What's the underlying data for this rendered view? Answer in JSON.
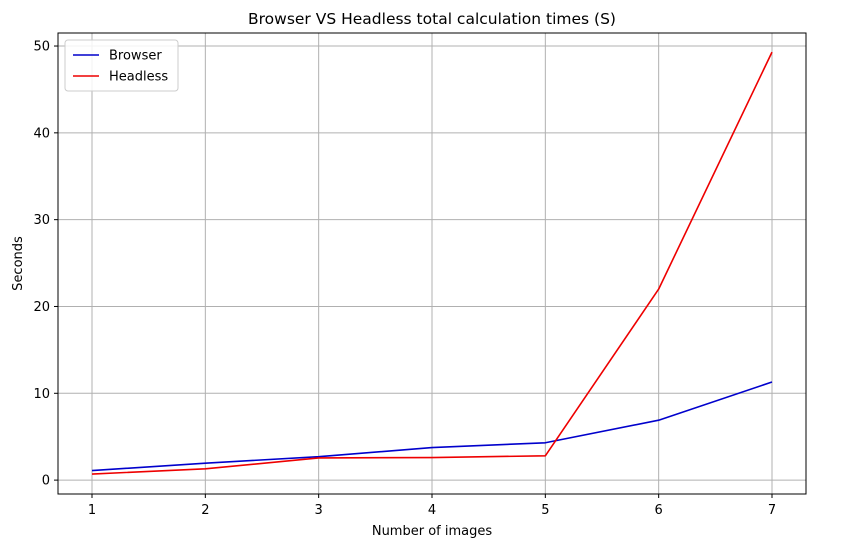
{
  "chart_data": {
    "type": "line",
    "title": "Browser VS Headless total calculation times (S)",
    "xlabel": "Number of images",
    "ylabel": "Seconds",
    "x": [
      1,
      2,
      3,
      4,
      5,
      6,
      7
    ],
    "xticks": [
      1,
      2,
      3,
      4,
      5,
      6,
      7
    ],
    "yticks": [
      0,
      10,
      20,
      30,
      40,
      50
    ],
    "xlim": [
      0.7,
      7.3
    ],
    "ylim": [
      -1.6,
      51.5
    ],
    "grid": true,
    "legend_position": "top-left",
    "series": [
      {
        "name": "Browser",
        "color": "#0000cc",
        "values": [
          1.1,
          1.95,
          2.7,
          3.75,
          4.3,
          6.9,
          11.3
        ]
      },
      {
        "name": "Headless",
        "color": "#ee0000",
        "values": [
          0.7,
          1.3,
          2.55,
          2.6,
          2.8,
          22.0,
          49.3
        ]
      }
    ]
  }
}
